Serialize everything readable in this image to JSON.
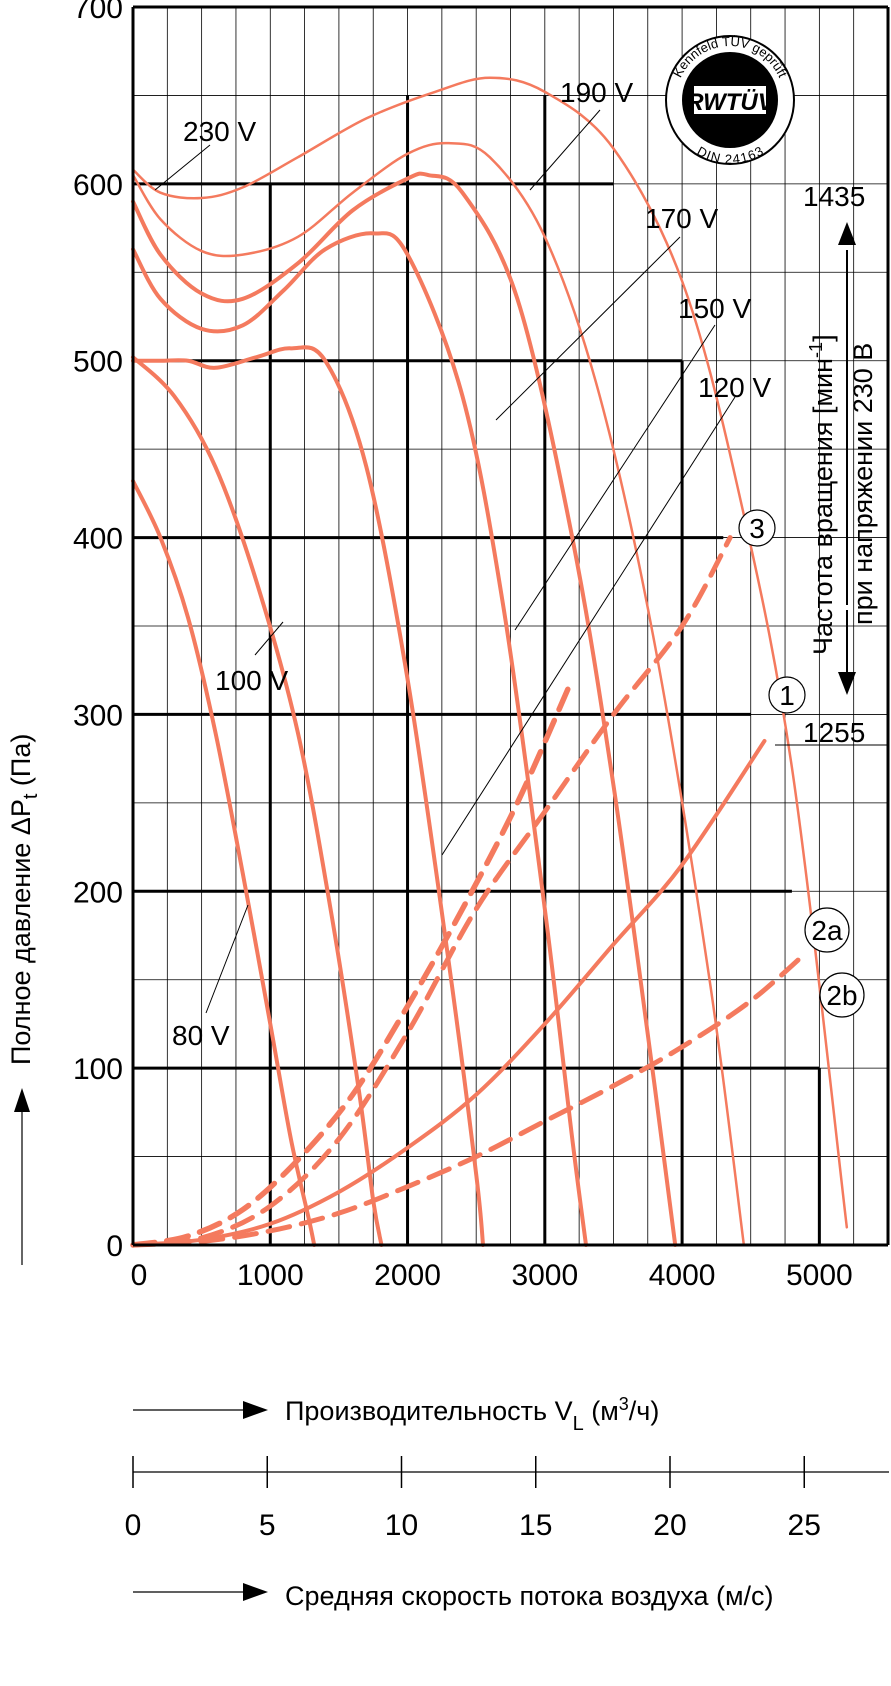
{
  "chart_data": {
    "type": "line",
    "xlabel": "Производительность V",
    "xlabel_sub": "L",
    "xlabel_unit_pre": "(м",
    "xlabel_unit_sup": "3",
    "xlabel_unit_post": "/ч)",
    "ylabel": "Полное давление ΔP",
    "ylabel_sub": "t",
    "ylabel_unit": "(Па)",
    "xlim": [
      0,
      5500
    ],
    "ylim": [
      0,
      700
    ],
    "x_ticks": [
      "0",
      "1000",
      "2000",
      "3000",
      "4000",
      "5000"
    ],
    "y_ticks": [
      "0",
      "100",
      "200",
      "300",
      "400",
      "500",
      "600",
      "700"
    ],
    "grid": true,
    "series": [
      {
        "name": "230 V",
        "style": "solid-thin",
        "x": [
          0,
          200,
          500,
          800,
          1200,
          1700,
          2200,
          2600,
          3000,
          3500,
          4000,
          4400,
          4800,
          5200
        ],
        "y": [
          608,
          595,
          592,
          598,
          615,
          637,
          652,
          660,
          652,
          620,
          545,
          430,
          270,
          10
        ]
      },
      {
        "name": "190 V",
        "style": "solid-thin",
        "x": [
          0,
          200,
          500,
          800,
          1200,
          1600,
          2000,
          2300,
          2600,
          3000,
          3400,
          3800,
          4200,
          4450
        ],
        "y": [
          605,
          580,
          562,
          560,
          570,
          595,
          617,
          623,
          615,
          570,
          480,
          340,
          150,
          0
        ]
      },
      {
        "name": "170 V",
        "style": "solid",
        "x": [
          0,
          200,
          500,
          800,
          1200,
          1600,
          2000,
          2150,
          2400,
          2800,
          3200,
          3500,
          3800,
          3950
        ],
        "y": [
          590,
          560,
          538,
          535,
          555,
          585,
          603,
          605,
          595,
          535,
          400,
          260,
          90,
          0
        ]
      },
      {
        "name": "150 V",
        "style": "solid",
        "x": [
          0,
          200,
          500,
          800,
          1100,
          1400,
          1750,
          2000,
          2400,
          2700,
          3000,
          3200,
          3300
        ],
        "y": [
          563,
          535,
          518,
          520,
          540,
          563,
          572,
          560,
          480,
          360,
          190,
          60,
          0
        ]
      },
      {
        "name": "120 V",
        "style": "solid",
        "x": [
          0,
          200,
          400,
          600,
          900,
          1150,
          1400,
          1700,
          2000,
          2300,
          2500,
          2550
        ],
        "y": [
          500,
          500,
          500,
          496,
          502,
          507,
          500,
          440,
          320,
          160,
          40,
          0
        ]
      },
      {
        "name": "100 V",
        "style": "solid",
        "x": [
          0,
          300,
          600,
          900,
          1200,
          1450,
          1650,
          1750,
          1810
        ],
        "y": [
          502,
          480,
          440,
          375,
          290,
          185,
          85,
          25,
          0
        ]
      },
      {
        "name": "80 V",
        "style": "solid",
        "x": [
          0,
          200,
          400,
          600,
          800,
          1000,
          1150,
          1280,
          1320
        ],
        "y": [
          432,
          400,
          355,
          290,
          210,
          125,
          60,
          15,
          0
        ]
      }
    ],
    "system_curves": [
      {
        "name": "1",
        "style": "solid",
        "x": [
          0,
          500,
          1000,
          1500,
          2000,
          2500,
          3000,
          3500,
          4000,
          4600
        ],
        "y": [
          0,
          3,
          12,
          30,
          55,
          85,
          125,
          170,
          215,
          285
        ]
      },
      {
        "name": "2a",
        "style": "dashed",
        "x": [
          0,
          500,
          1000,
          1500,
          2000,
          2500,
          3000,
          3500,
          4000,
          4500,
          4900
        ],
        "y": [
          0,
          2,
          8,
          18,
          33,
          50,
          70,
          90,
          112,
          138,
          165
        ]
      },
      {
        "name": "2b",
        "style": "dashed",
        "x": [
          0,
          500,
          1000,
          1500,
          2000,
          2500,
          3000,
          3500,
          4000,
          4350
        ],
        "y": [
          0,
          4,
          22,
          60,
          120,
          190,
          245,
          300,
          350,
          400
        ]
      },
      {
        "name": "3",
        "style": "dashed-bold",
        "x": [
          0,
          400,
          800,
          1200,
          1600,
          2000,
          2400,
          2800,
          3200
        ],
        "y": [
          0,
          5,
          20,
          48,
          85,
          135,
          190,
          250,
          320
        ]
      }
    ],
    "voltage_labels": [
      "230 V",
      "190 V",
      "170 V",
      "150 V",
      "120 V",
      "100 V",
      "80 V"
    ],
    "curve_markers": [
      "1",
      "2a",
      "2b",
      "3"
    ],
    "speed_axis": {
      "label": "Частота вращения [мин",
      "sup": "-1",
      "label_end": "]",
      "label2": "при напряжении 230 В",
      "upper": "1435",
      "lower": "1255"
    },
    "velocity_axis": {
      "label": "Средняя скорость потока воздуха (м/с)",
      "ticks": [
        "0",
        "5",
        "10",
        "15",
        "20",
        "25"
      ],
      "values": [
        0,
        5,
        10,
        15,
        20,
        25
      ]
    },
    "badge": {
      "top": "Kennfeld TÜV geprüft",
      "mark": "RWTÜV",
      "bottom": "DIN 24163"
    },
    "colors": {
      "curve": "#f47a5e",
      "grid": "#000000"
    }
  }
}
